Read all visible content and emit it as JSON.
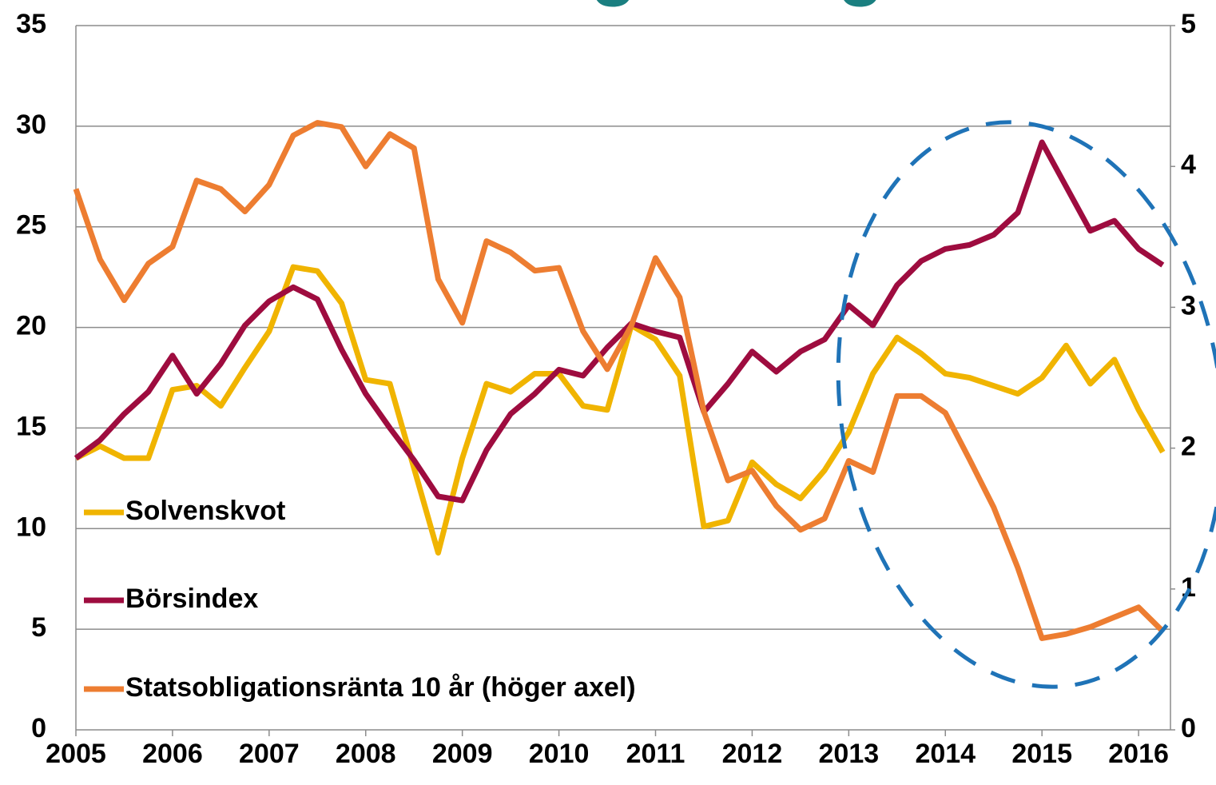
{
  "chart_data": {
    "type": "line",
    "title": "Försäkringsbolagen",
    "x": [
      2005,
      2005.25,
      2005.5,
      2005.75,
      2006,
      2006.25,
      2006.5,
      2006.75,
      2007,
      2007.25,
      2007.5,
      2007.75,
      2008,
      2008.25,
      2008.5,
      2008.75,
      2009,
      2009.25,
      2009.5,
      2009.75,
      2010,
      2010.25,
      2010.5,
      2010.75,
      2011,
      2011.25,
      2011.5,
      2011.75,
      2012,
      2012.25,
      2012.5,
      2012.75,
      2013,
      2013.25,
      2013.5,
      2013.75,
      2014,
      2014.25,
      2014.5,
      2014.75,
      2015,
      2015.25,
      2015.5,
      2015.75,
      2016,
      2016.25
    ],
    "series": [
      {
        "name": "Solvenskvot",
        "color": "#f0b400",
        "values": [
          13.5,
          14.1,
          13.5,
          13.5,
          16.9,
          17.1,
          16.1,
          18.0,
          19.8,
          23.0,
          22.8,
          21.2,
          17.4,
          17.2,
          13.0,
          8.8,
          13.5,
          17.2,
          16.8,
          17.7,
          17.7,
          16.1,
          15.9,
          20.1,
          19.4,
          17.6,
          10.1,
          10.4,
          13.3,
          12.2,
          11.5,
          12.9,
          14.8,
          17.7,
          19.5,
          18.7,
          17.7,
          17.5,
          17.1,
          16.7,
          17.5,
          19.1,
          17.2,
          18.4,
          15.9,
          13.8
        ]
      },
      {
        "name": "Börsindex",
        "color": "#9e0c3f",
        "values": [
          13.5,
          14.4,
          15.7,
          16.8,
          18.6,
          16.7,
          18.2,
          20.1,
          21.3,
          22.0,
          21.4,
          18.9,
          16.7,
          15.0,
          13.4,
          11.6,
          11.4,
          13.9,
          15.7,
          16.7,
          17.9,
          17.6,
          19.0,
          20.2,
          19.8,
          19.5,
          15.8,
          17.2,
          18.8,
          17.8,
          18.8,
          19.4,
          21.1,
          20.1,
          22.1,
          23.3,
          23.9,
          24.1,
          24.6,
          25.7,
          29.2,
          27.0,
          24.8,
          25.3,
          23.9,
          23.1
        ]
      },
      {
        "name": "Statsobligationsränta 10 år (höger axel)",
        "color": "#ed7d31",
        "axis": "y2",
        "values": [
          3.84,
          3.34,
          3.05,
          3.31,
          3.43,
          3.9,
          3.84,
          3.68,
          3.87,
          4.22,
          4.31,
          4.28,
          4.0,
          4.23,
          4.13,
          3.2,
          2.89,
          3.47,
          3.39,
          3.26,
          3.28,
          2.83,
          2.56,
          2.87,
          3.35,
          3.07,
          2.26,
          1.77,
          1.84,
          1.59,
          1.42,
          1.5,
          1.91,
          1.83,
          2.37,
          2.37,
          2.25,
          1.92,
          1.58,
          1.15,
          0.65,
          0.68,
          0.73,
          0.8,
          0.87,
          0.7
        ]
      }
    ],
    "xlim": [
      2005,
      2016.33
    ],
    "xticks": [
      2005,
      2006,
      2007,
      2008,
      2009,
      2010,
      2011,
      2012,
      2013,
      2014,
      2015,
      2016
    ],
    "ylim": [
      0,
      35
    ],
    "yticks": [
      0,
      5,
      10,
      15,
      20,
      25,
      30,
      35
    ],
    "y2lim": [
      0,
      5
    ],
    "y2ticks": [
      0,
      1,
      2,
      3,
      4,
      5
    ],
    "grid": true,
    "legend": "left"
  }
}
